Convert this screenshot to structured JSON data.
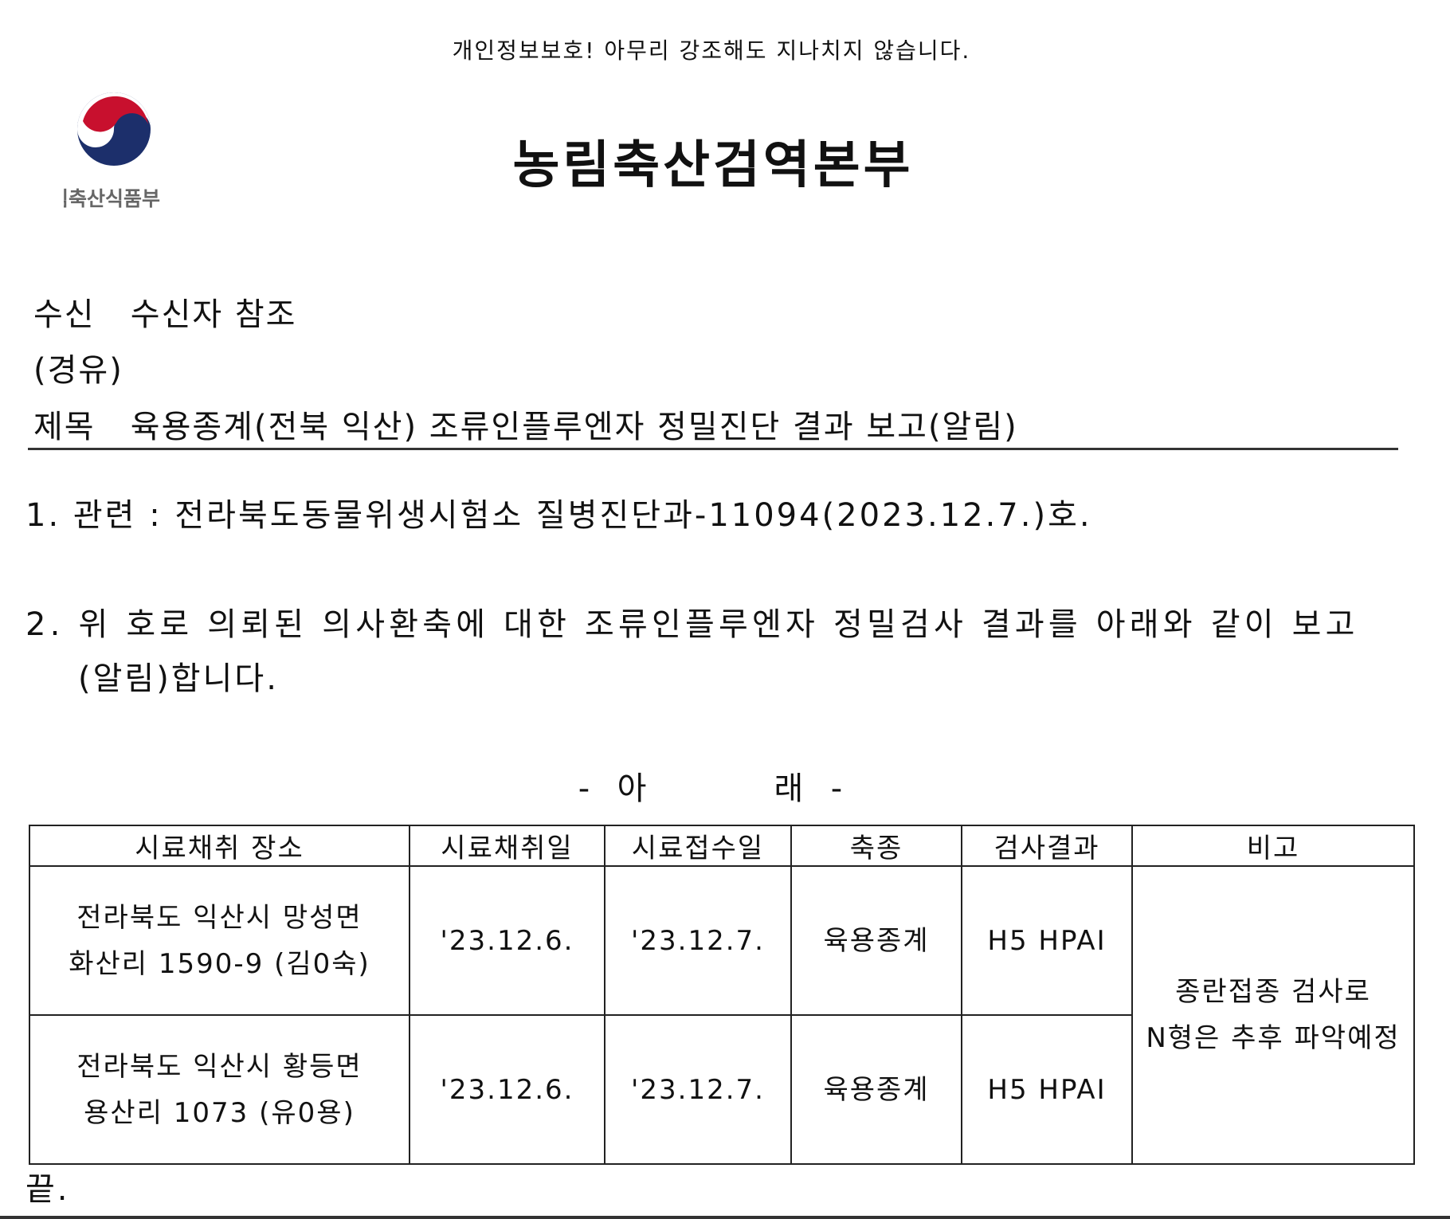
{
  "notice": "개인정보보호! 아무리 강조해도 지나치지 않습니다.",
  "logo": {
    "text": "농림축산식품부",
    "colors": {
      "red": "#c8102e",
      "blue": "#1c2f6b"
    }
  },
  "title": "농림축산검역본부",
  "recipient": {
    "label": "수신",
    "value": "수신자 참조"
  },
  "via": {
    "label": "(경유)"
  },
  "subject": {
    "label": "제목",
    "value": "육용종계(전북 익산) 조류인플루엔자 정밀진단 결과 보고(알림)"
  },
  "items": [
    "1. 관련 : 전라북도동물위생시험소 질병진단과-11094(2023.12.7.)호.",
    "2. 위 호로 의뢰된 의사환축에 대한 조류인플루엔자 정밀검사 결과를 아래와 같이 보고",
    "(알림)합니다."
  ],
  "below_heading": "-  아          래  -",
  "table": {
    "headers": [
      "시료채취 장소",
      "시료채취일",
      "시료접수일",
      "축종",
      "검사결과",
      "비고"
    ],
    "rows": [
      {
        "place_line1": "전라북도 익산시 망성면",
        "place_line2": "화산리 1590-9 (김0숙)",
        "collected": "'23.12.6.",
        "received": "'23.12.7.",
        "species": "육용종계",
        "result": "H5 HPAI"
      },
      {
        "place_line1": "전라북도 익산시 황등면",
        "place_line2": "용산리 1073 (유0용)",
        "collected": "'23.12.6.",
        "received": "'23.12.7.",
        "species": "육용종계",
        "result": "H5 HPAI"
      }
    ],
    "remark_line1": "종란접종 검사로",
    "remark_line2": "N형은 추후 파악예정"
  },
  "end": "끝."
}
